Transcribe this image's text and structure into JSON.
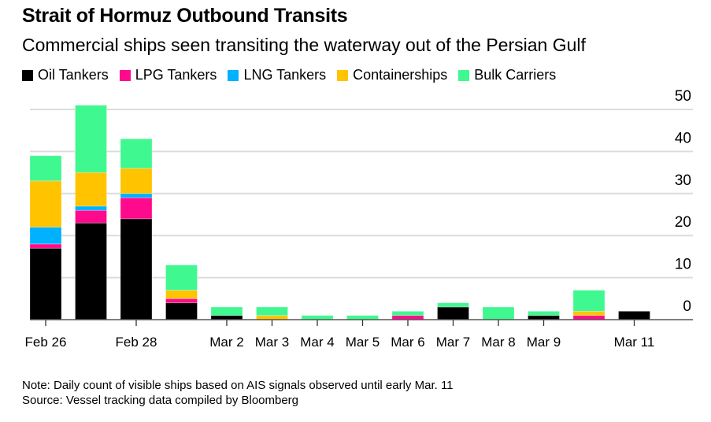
{
  "chart_data": {
    "type": "bar",
    "stacked": true,
    "title": "Strait of Hormuz Outbound Transits",
    "subtitle": "Commercial ships seen transiting the waterway out of the Persian Gulf",
    "categories": [
      "Feb 26",
      "Feb 27",
      "Feb 28",
      "Mar 1",
      "Mar 2",
      "Mar 3",
      "Mar 4",
      "Mar 5",
      "Mar 6",
      "Mar 7",
      "Mar 8",
      "Mar 9",
      "Mar 10",
      "Mar 11"
    ],
    "tick_labels": [
      "Feb 26",
      "",
      "Feb 28",
      "",
      "Mar 2",
      "Mar 3",
      "Mar 4",
      "Mar 5",
      "Mar 6",
      "Mar 7",
      "Mar 8",
      "Mar 9",
      "",
      "Mar 11"
    ],
    "series": [
      {
        "name": "Oil Tankers",
        "color": "#000000",
        "values": [
          17,
          23,
          24,
          4,
          1,
          0,
          0,
          0,
          0,
          3,
          0,
          1,
          0,
          2
        ]
      },
      {
        "name": "LPG Tankers",
        "color": "#ff0a8c",
        "values": [
          1,
          3,
          5,
          1,
          0,
          0,
          0,
          0,
          1,
          0,
          0,
          0,
          1,
          0
        ]
      },
      {
        "name": "LNG Tankers",
        "color": "#00b1ff",
        "values": [
          4,
          1,
          1,
          0,
          0,
          0,
          0,
          0,
          0,
          0,
          0,
          0,
          0,
          0
        ]
      },
      {
        "name": "Containerships",
        "color": "#ffc300",
        "values": [
          11,
          8,
          6,
          2,
          0,
          1,
          0,
          0,
          0,
          0,
          0,
          0,
          1,
          0
        ]
      },
      {
        "name": "Bulk Carriers",
        "color": "#40f890",
        "values": [
          6,
          16,
          7,
          6,
          2,
          2,
          1,
          1,
          1,
          1,
          3,
          1,
          5,
          0
        ]
      }
    ],
    "yticks": [
      0,
      10,
      20,
      30,
      40,
      50
    ],
    "ylim": [
      0,
      50
    ],
    "y_axis_side": "right",
    "grid": true,
    "legend_placement": "top-left",
    "note": "Note: Daily count of visible ships based on AIS signals observed until early Mar. 11",
    "source": "Source: Vessel tracking data compiled by Bloomberg"
  }
}
